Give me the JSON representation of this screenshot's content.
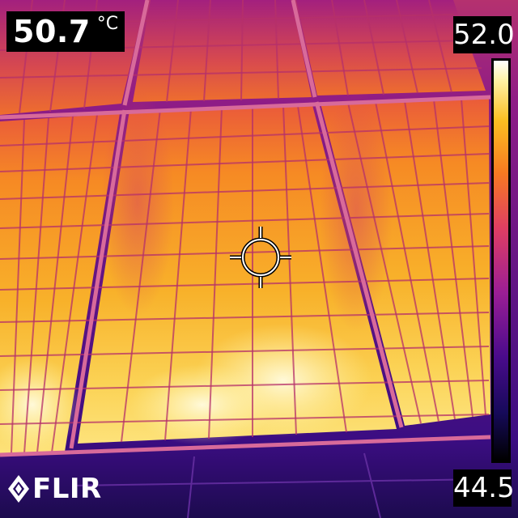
{
  "measurement": {
    "value": "50.7",
    "unit": "°C"
  },
  "scale": {
    "max": "52.0",
    "min": "44.5"
  },
  "logo": {
    "text": "FLIR"
  },
  "palette": {
    "cold": "#160a5a",
    "mid": "#9b1e95",
    "warm": "#f77a21",
    "hot": "#fff2a4"
  },
  "icons": {
    "reticle": "crosshair-icon",
    "logo_mark": "flame-icon"
  }
}
